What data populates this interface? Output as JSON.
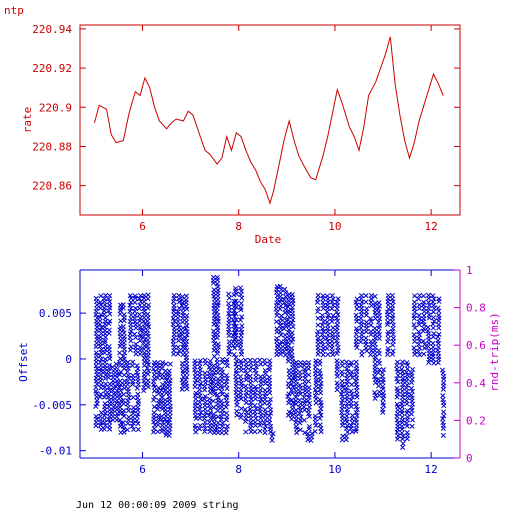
{
  "chart_data": [
    {
      "type": "line",
      "title": "ntp",
      "xlabel": "Date",
      "ylabel": "rate",
      "xlim": [
        4.7,
        12.6
      ],
      "ylim": [
        220.845,
        220.942
      ],
      "xticks": [
        6,
        8,
        10,
        12
      ],
      "yticks": [
        220.86,
        220.88,
        220.9,
        220.92,
        220.94
      ],
      "ytick_labels": [
        "220.86",
        "220.88",
        "220.9",
        "220.92",
        "220.94"
      ],
      "color": "#cc0000",
      "series": [
        {
          "x": [
            5.0,
            5.1,
            5.25,
            5.35,
            5.45,
            5.6,
            5.72,
            5.85,
            5.95,
            6.05,
            6.15,
            6.25,
            6.35,
            6.5,
            6.6,
            6.7,
            6.85,
            6.95,
            7.05,
            7.2,
            7.3,
            7.4,
            7.55,
            7.65,
            7.75,
            7.85,
            7.95,
            8.05,
            8.15,
            8.25,
            8.35,
            8.45,
            8.55,
            8.65,
            8.72,
            8.85,
            8.95,
            9.05,
            9.15,
            9.25,
            9.4,
            9.5,
            9.6,
            9.75,
            9.85,
            9.95,
            10.05,
            10.15,
            10.3,
            10.4,
            10.5,
            10.6,
            10.7,
            10.85,
            10.95,
            11.05,
            11.15,
            11.25,
            11.35,
            11.45,
            11.55,
            11.65,
            11.75,
            11.85,
            11.95,
            12.05,
            12.15,
            12.25
          ],
          "y": [
            220.892,
            220.901,
            220.899,
            220.886,
            220.882,
            220.883,
            220.897,
            220.908,
            220.906,
            220.915,
            220.91,
            220.9,
            220.893,
            220.889,
            220.892,
            220.894,
            220.893,
            220.898,
            220.896,
            220.885,
            220.878,
            220.876,
            220.871,
            220.874,
            220.885,
            220.878,
            220.887,
            220.885,
            220.878,
            220.872,
            220.868,
            220.862,
            220.858,
            220.851,
            220.857,
            220.872,
            220.884,
            220.893,
            220.883,
            220.875,
            220.868,
            220.864,
            220.863,
            220.875,
            220.885,
            220.897,
            220.909,
            220.902,
            220.89,
            220.885,
            220.878,
            220.89,
            220.906,
            220.913,
            220.92,
            220.927,
            220.936,
            220.912,
            220.896,
            220.883,
            220.874,
            220.882,
            220.893,
            220.901,
            220.909,
            220.917,
            220.912,
            220.906
          ]
        }
      ]
    },
    {
      "type": "scatter",
      "xlabel": "",
      "ylabel": "Offset",
      "y2label": "rnd-trip(ms)",
      "xlim": [
        4.7,
        12.6
      ],
      "ylim": [
        -0.0108,
        0.0097
      ],
      "y2lim": [
        0,
        1
      ],
      "xticks": [
        6,
        8,
        10,
        12
      ],
      "yticks": [
        -0.01,
        -0.005,
        0,
        0.005
      ],
      "ytick_labels": [
        "-0.01",
        "-0.005",
        "0",
        "0.005"
      ],
      "y2ticks": [
        0,
        0.2,
        0.4,
        0.6,
        0.8,
        1
      ],
      "y2tick_labels": [
        "0",
        "0.2",
        "0.4",
        "0.6",
        "0.8",
        "1"
      ],
      "marker": "x",
      "color": "#0000cc",
      "axis2_color": "#cc00cc",
      "bands": [
        {
          "x0": 5.0,
          "x1": 5.35,
          "ymin": -0.0078,
          "ymax": 0.0071
        },
        {
          "x0": 5.35,
          "x1": 5.5,
          "ymin": -0.0072,
          "ymax": -0.0004
        },
        {
          "x0": 5.5,
          "x1": 5.65,
          "ymin": -0.0082,
          "ymax": 0.0061
        },
        {
          "x0": 5.65,
          "x1": 5.95,
          "ymin": -0.0079,
          "ymax": -0.0002
        },
        {
          "x0": 5.7,
          "x1": 6.0,
          "ymin": 0.0004,
          "ymax": 0.0071
        },
        {
          "x0": 6.0,
          "x1": 6.15,
          "ymin": -0.0036,
          "ymax": 0.0071
        },
        {
          "x0": 6.2,
          "x1": 6.45,
          "ymin": -0.0081,
          "ymax": -0.0002
        },
        {
          "x0": 6.45,
          "x1": 6.6,
          "ymin": -0.0085,
          "ymax": -0.0004
        },
        {
          "x0": 6.6,
          "x1": 6.8,
          "ymin": 0.0004,
          "ymax": 0.0071
        },
        {
          "x0": 6.8,
          "x1": 6.95,
          "ymin": -0.0035,
          "ymax": 0.007
        },
        {
          "x0": 7.05,
          "x1": 7.45,
          "ymin": -0.0081,
          "ymax": 0.0
        },
        {
          "x0": 7.45,
          "x1": 7.6,
          "ymin": -0.0082,
          "ymax": 0.0091
        },
        {
          "x0": 7.6,
          "x1": 7.8,
          "ymin": -0.0082,
          "ymax": 0.0001
        },
        {
          "x0": 7.75,
          "x1": 7.95,
          "ymin": 0.0003,
          "ymax": 0.0072
        },
        {
          "x0": 7.9,
          "x1": 8.1,
          "ymin": -0.0066,
          "ymax": 0.0079
        },
        {
          "x0": 8.1,
          "x1": 8.5,
          "ymin": -0.0081,
          "ymax": 0.0
        },
        {
          "x0": 8.5,
          "x1": 8.7,
          "ymin": -0.0082,
          "ymax": 0.0
        },
        {
          "x0": 8.65,
          "x1": 8.75,
          "ymin": -0.009,
          "ymax": -0.0076
        },
        {
          "x0": 8.75,
          "x1": 9.0,
          "ymin": 0.0003,
          "ymax": 0.0081
        },
        {
          "x0": 9.0,
          "x1": 9.15,
          "ymin": -0.0067,
          "ymax": 0.0072
        },
        {
          "x0": 9.15,
          "x1": 9.5,
          "ymin": -0.0082,
          "ymax": -0.0002
        },
        {
          "x0": 9.4,
          "x1": 9.55,
          "ymin": -0.009,
          "ymax": -0.008
        },
        {
          "x0": 9.55,
          "x1": 9.75,
          "ymin": -0.0081,
          "ymax": 0.0
        },
        {
          "x0": 9.6,
          "x1": 10.0,
          "ymin": 0.0003,
          "ymax": 0.0071
        },
        {
          "x0": 10.0,
          "x1": 10.1,
          "ymin": -0.0035,
          "ymax": 0.0071
        },
        {
          "x0": 10.1,
          "x1": 10.5,
          "ymin": -0.0081,
          "ymax": -0.0002
        },
        {
          "x0": 10.1,
          "x1": 10.3,
          "ymin": -0.009,
          "ymax": -0.0082
        },
        {
          "x0": 10.4,
          "x1": 10.8,
          "ymin": 0.0003,
          "ymax": 0.0071
        },
        {
          "x0": 10.8,
          "x1": 10.95,
          "ymin": -0.0045,
          "ymax": 0.007
        },
        {
          "x0": 10.95,
          "x1": 11.05,
          "ymin": -0.006,
          "ymax": -0.001
        },
        {
          "x0": 11.05,
          "x1": 11.25,
          "ymin": 0.0003,
          "ymax": 0.0071
        },
        {
          "x0": 11.25,
          "x1": 11.55,
          "ymin": -0.0089,
          "ymax": -0.0002
        },
        {
          "x0": 11.35,
          "x1": 11.45,
          "ymin": -0.0098,
          "ymax": -0.009
        },
        {
          "x0": 11.55,
          "x1": 11.65,
          "ymin": -0.0075,
          "ymax": -0.001
        },
        {
          "x0": 11.6,
          "x1": 11.9,
          "ymin": 0.0003,
          "ymax": 0.0071
        },
        {
          "x0": 11.9,
          "x1": 12.2,
          "ymin": -0.0006,
          "ymax": 0.0071
        },
        {
          "x0": 12.2,
          "x1": 12.3,
          "ymin": -0.0085,
          "ymax": -0.001
        }
      ]
    }
  ],
  "footer": "Jun 12 00:00:09 2009 string"
}
